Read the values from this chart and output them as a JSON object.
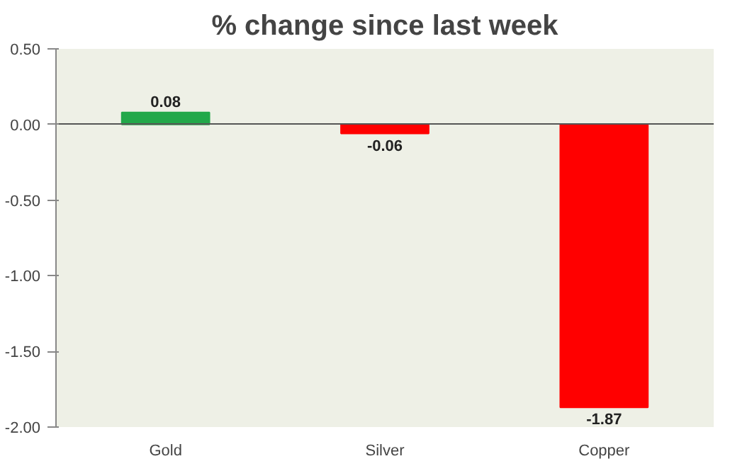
{
  "chart_data": {
    "type": "bar",
    "title": "% change since last week",
    "categories": [
      "Gold",
      "Silver",
      "Copper"
    ],
    "values": [
      0.08,
      -0.06,
      -1.87
    ],
    "colors": [
      "#22a84a",
      "#ff0000",
      "#ff0000"
    ],
    "ylim": [
      -2.0,
      0.5
    ],
    "yticks": [
      {
        "value": 0.5,
        "label": "0.50"
      },
      {
        "value": 0,
        "label": "0.00"
      },
      {
        "value": -0.5,
        "label": "-0.50"
      },
      {
        "value": -1.0,
        "label": "-1.00"
      },
      {
        "value": -1.5,
        "label": "-1.50"
      },
      {
        "value": -2.0,
        "label": "-2.00"
      }
    ],
    "data_labels": true
  }
}
